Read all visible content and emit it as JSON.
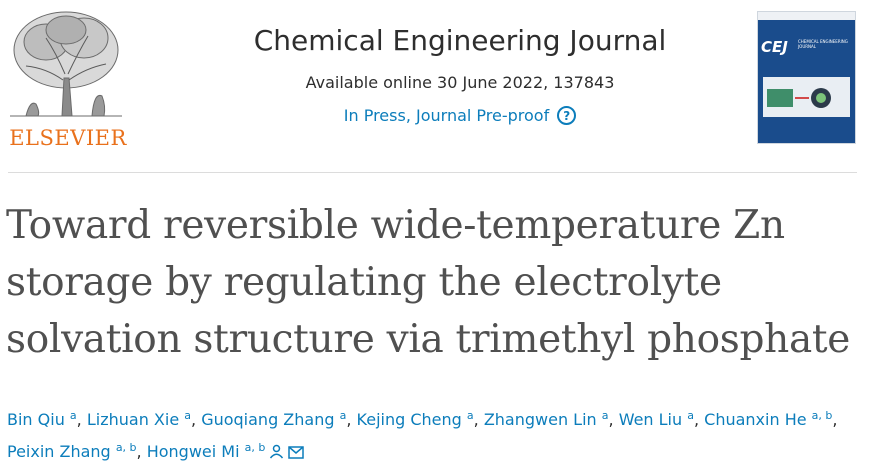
{
  "publisher": {
    "logo_text": "ELSEVIER",
    "icon": "elsevier-tree-logo"
  },
  "journal": {
    "title": "Chemical Engineering Journal",
    "available_online": "Available online 30 June 2022, 137843",
    "status": "In Press, Journal Pre-proof",
    "help_icon": "question-circle-icon",
    "cover": {
      "abbr": "CEJ",
      "name": "CHEMICAL ENGINEERING JOURNAL"
    }
  },
  "colors": {
    "link": "#0c7dbb",
    "elsevier_orange": "#e9711c",
    "title_text": "#505050",
    "cover_blue": "#1a4c8c"
  },
  "article": {
    "title": "Toward reversible wide-temperature Zn storage by regulating the electrolyte solvation structure via trimethyl phosphate"
  },
  "authors": [
    {
      "name": "Bin Qiu",
      "aff": "a"
    },
    {
      "name": "Lizhuan Xie",
      "aff": "a"
    },
    {
      "name": "Guoqiang Zhang",
      "aff": "a"
    },
    {
      "name": "Kejing Cheng",
      "aff": "a"
    },
    {
      "name": "Zhangwen Lin",
      "aff": "a"
    },
    {
      "name": "Wen Liu",
      "aff": "a"
    },
    {
      "name": "Chuanxin He",
      "aff": "a, b"
    },
    {
      "name": "Peixin Zhang",
      "aff": "a, b"
    },
    {
      "name": "Hongwei Mi",
      "aff": "a, b"
    }
  ],
  "corresponding_icons": [
    "person-icon",
    "envelope-icon"
  ],
  "separator": ", "
}
